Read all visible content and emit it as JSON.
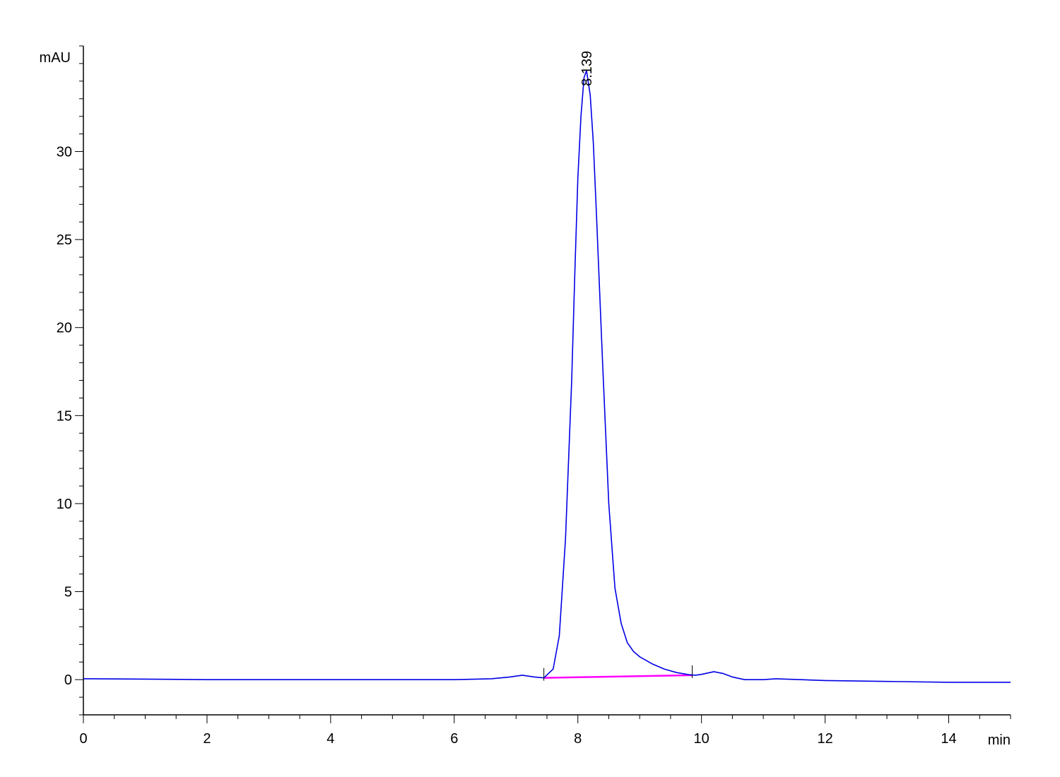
{
  "chart_data": {
    "type": "line",
    "title": "",
    "ylabel": "mAU",
    "xlabel": "min",
    "xlim": [
      0,
      15
    ],
    "ylim": [
      -2,
      36
    ],
    "x_ticks": [
      0,
      2,
      4,
      6,
      8,
      10,
      12,
      14
    ],
    "x_tick_labels": [
      "0",
      "2",
      "4",
      "6",
      "8",
      "10",
      "12",
      "14"
    ],
    "y_ticks": [
      0,
      5,
      10,
      15,
      20,
      25,
      30
    ],
    "y_tick_labels": [
      "0",
      "5",
      "10",
      "15",
      "20",
      "25",
      "30"
    ],
    "grid": false,
    "legend": "none",
    "series": [
      {
        "color": "#0000e6",
        "x": [
          0,
          1,
          2,
          3,
          4,
          5,
          6,
          6.6,
          6.9,
          7.1,
          7.3,
          7.45,
          7.6,
          7.7,
          7.8,
          7.9,
          7.95,
          8.0,
          8.05,
          8.1,
          8.14,
          8.2,
          8.25,
          8.3,
          8.4,
          8.5,
          8.6,
          8.7,
          8.8,
          8.9,
          9.0,
          9.2,
          9.4,
          9.6,
          9.8,
          9.9,
          10.0,
          10.2,
          10.35,
          10.5,
          10.7,
          11.0,
          11.2,
          12,
          13,
          14,
          15
        ],
        "y": [
          0.05,
          0.03,
          0.0,
          0.0,
          0.0,
          0.0,
          0.0,
          0.05,
          0.15,
          0.25,
          0.15,
          0.1,
          0.6,
          2.5,
          8.0,
          17.0,
          23.0,
          28.5,
          32.0,
          34.2,
          34.6,
          33.2,
          30.5,
          26.5,
          18.0,
          10.0,
          5.2,
          3.2,
          2.1,
          1.6,
          1.3,
          0.9,
          0.6,
          0.4,
          0.28,
          0.25,
          0.3,
          0.45,
          0.35,
          0.15,
          0.0,
          0.0,
          0.05,
          -0.05,
          -0.1,
          -0.15,
          -0.15
        ]
      },
      {
        "color": "#ff00ff",
        "x": [
          7.45,
          9.85
        ],
        "y": [
          0.1,
          0.25
        ]
      }
    ],
    "annotations": [
      {
        "text": "8.139",
        "x": 8.139,
        "y": 34.6
      }
    ]
  }
}
